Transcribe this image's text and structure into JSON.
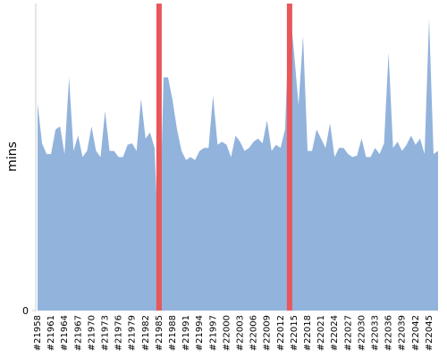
{
  "chart_data": {
    "type": "area",
    "y_label": "mins",
    "categories": [
      "#21958",
      null,
      null,
      "#21961",
      null,
      null,
      "#21964",
      null,
      null,
      "#21967",
      null,
      null,
      "#21970",
      null,
      null,
      "#21973",
      null,
      null,
      "#21976",
      null,
      null,
      "#21979",
      null,
      null,
      "#21982",
      null,
      null,
      "#21985",
      null,
      null,
      "#21988",
      null,
      null,
      "#21991",
      null,
      null,
      "#21994",
      null,
      null,
      "#21997",
      null,
      null,
      "#22000",
      null,
      null,
      "#22003",
      null,
      null,
      "#22006",
      null,
      null,
      "#22009",
      null,
      null,
      "#22012",
      null,
      null,
      "#22015",
      null,
      null,
      "#22018",
      null,
      null,
      "#22021",
      null,
      null,
      "#22024",
      null,
      null,
      "#22027",
      null,
      null,
      "#22030",
      null,
      null,
      "#22033",
      null,
      null,
      "#22036",
      null,
      null,
      "#22039",
      null,
      null,
      "#22042",
      null,
      null,
      "#22045",
      null,
      null
    ],
    "values": [
      67.6,
      54.5,
      51,
      51,
      59,
      60,
      51,
      76,
      52,
      57,
      50,
      52,
      60,
      52,
      50,
      65,
      52,
      52,
      50,
      50,
      54,
      54.5,
      52,
      69,
      56,
      58,
      53,
      17,
      76,
      76,
      68.5,
      59,
      52,
      49,
      50,
      49,
      52,
      53,
      53,
      70,
      54,
      55,
      54,
      50,
      57,
      55,
      52,
      53,
      55,
      56,
      54.5,
      62,
      52,
      54,
      53,
      59,
      100,
      84,
      67,
      89.5,
      52,
      52,
      59,
      56,
      53,
      61,
      50,
      53,
      53,
      51,
      50,
      50.5,
      56,
      50,
      50,
      53,
      51,
      54.5,
      84,
      53,
      55,
      52,
      54,
      57,
      54,
      56,
      51,
      95,
      51,
      52
    ],
    "color": "#92b3dc",
    "highlights": [
      27,
      56
    ],
    "highlight_color": "#e8575a",
    "ylim": [
      0,
      100
    ],
    "yticks": [
      0
    ]
  }
}
